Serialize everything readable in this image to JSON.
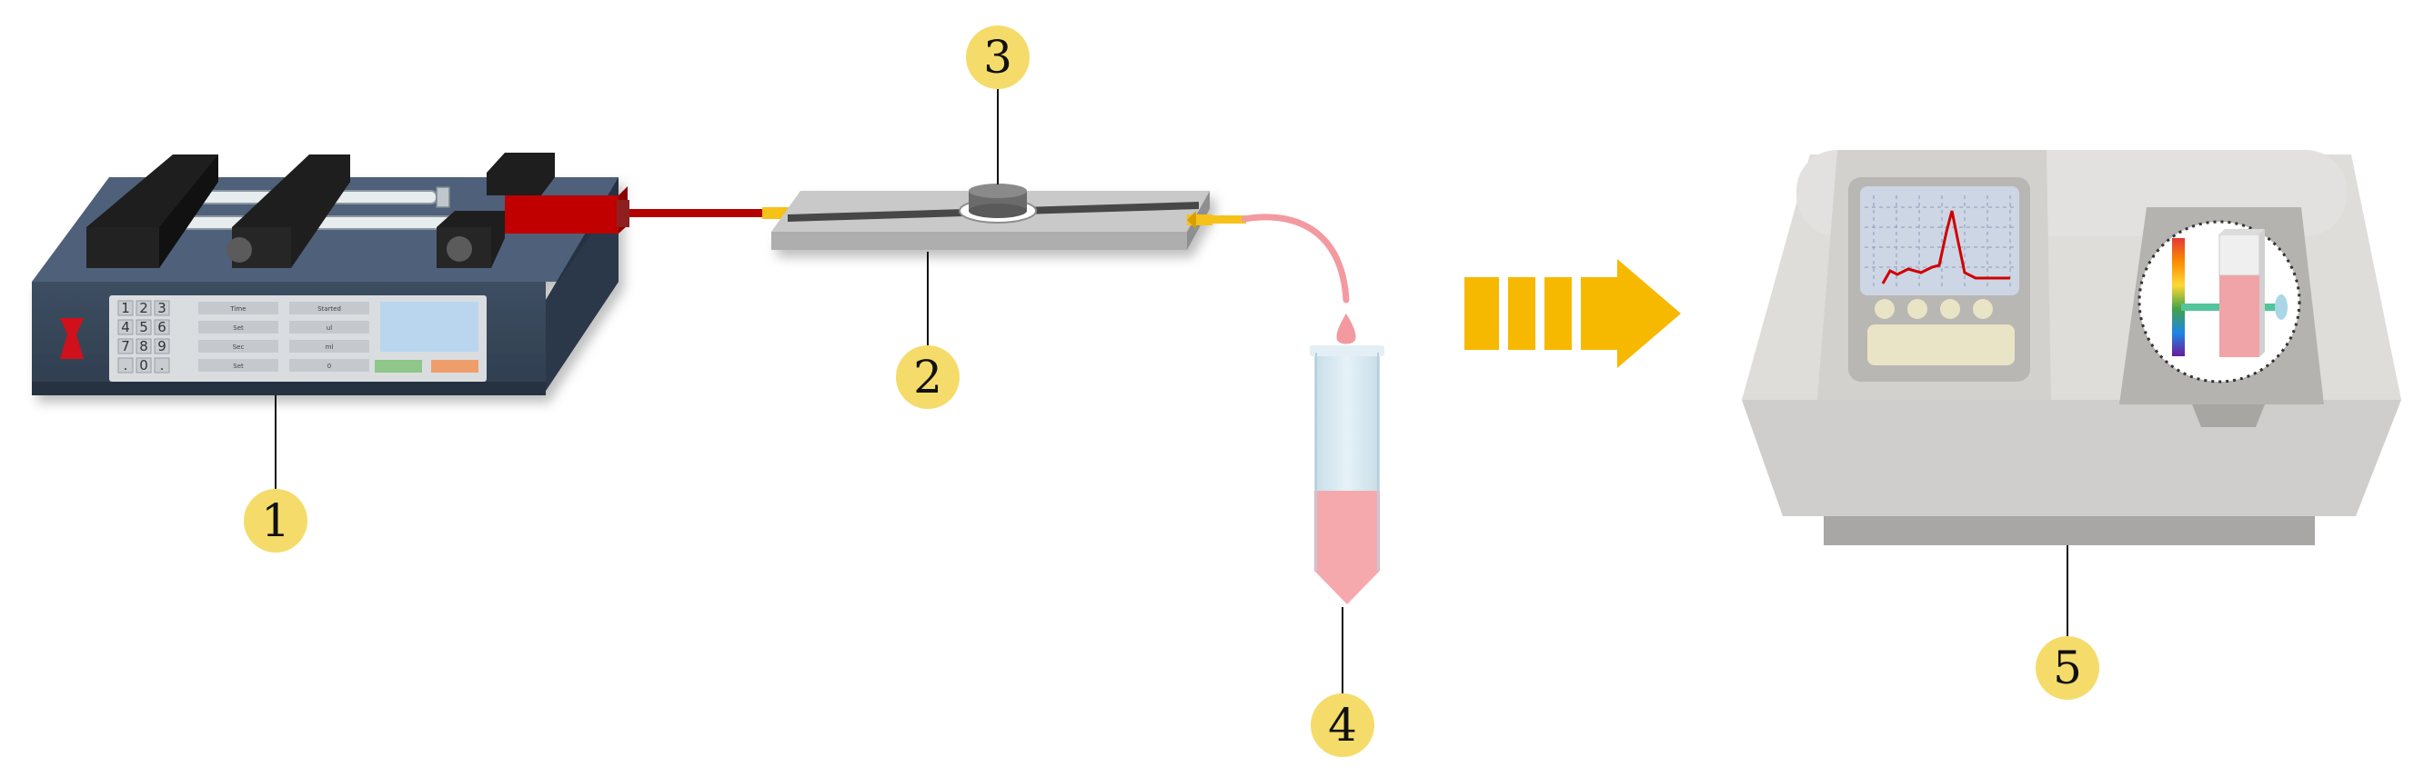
{
  "callouts": [
    {
      "id": "1",
      "label": "1"
    },
    {
      "id": "2",
      "label": "2"
    },
    {
      "id": "3",
      "label": "3"
    },
    {
      "id": "4",
      "label": "4"
    },
    {
      "id": "5",
      "label": "5"
    }
  ],
  "syringe_pump": {
    "keypad": [
      "1",
      "2",
      "3",
      "4",
      "5",
      "6",
      "7",
      "8",
      "9",
      ".",
      "0",
      "."
    ],
    "button_labels": [
      "Time",
      "Started",
      "Set",
      "ul",
      "Sec",
      "ml",
      "Set",
      "0"
    ]
  },
  "colors": {
    "pump_body": "#3a4a5c",
    "callout_fill": "#f5dc6a",
    "arrow": "#f7b800",
    "tubing_red": "#c00000",
    "connector_yellow": "#f6c21a",
    "sample_pink": "#f6a9ad",
    "tube_blue": "#d9ebf3",
    "instrument_gray": "#d6d6d4",
    "spectrum_line": "#d00000"
  },
  "icons": {
    "process_arrow": "striped-right-arrow",
    "pump_handle": "red-bow-tie-icon"
  }
}
